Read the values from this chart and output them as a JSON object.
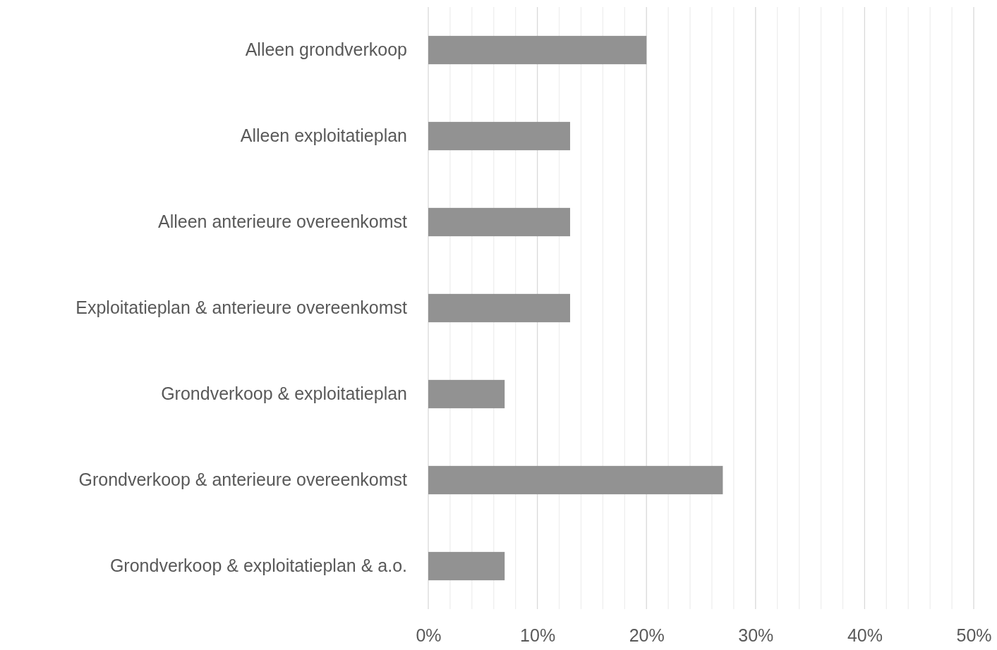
{
  "chart_data": {
    "type": "bar",
    "orientation": "horizontal",
    "categories": [
      "Alleen grondverkoop",
      "Alleen exploitatieplan",
      "Alleen anterieure overeenkomst",
      "Exploitatieplan & anterieure overeenkomst",
      "Grondverkoop & exploitatieplan",
      "Grondverkoop & anterieure overeenkomst",
      "Grondverkoop & exploitatieplan & a.o."
    ],
    "values": [
      20,
      13,
      13,
      13,
      7,
      27,
      7
    ],
    "color": "#929292",
    "xlim": [
      0,
      50
    ],
    "xticks": [
      {
        "value": 0,
        "label": "0%"
      },
      {
        "value": 2,
        "label": null
      },
      {
        "value": 4,
        "label": null
      },
      {
        "value": 6,
        "label": null
      },
      {
        "value": 8,
        "label": null
      },
      {
        "value": 10,
        "label": "10%"
      },
      {
        "value": 12,
        "label": null
      },
      {
        "value": 14,
        "label": null
      },
      {
        "value": 16,
        "label": null
      },
      {
        "value": 18,
        "label": null
      },
      {
        "value": 20,
        "label": "20%"
      },
      {
        "value": 22,
        "label": null
      },
      {
        "value": 24,
        "label": null
      },
      {
        "value": 26,
        "label": null
      },
      {
        "value": 28,
        "label": null
      },
      {
        "value": 30,
        "label": "30%"
      },
      {
        "value": 32,
        "label": null
      },
      {
        "value": 34,
        "label": null
      },
      {
        "value": 36,
        "label": null
      },
      {
        "value": 38,
        "label": null
      },
      {
        "value": 40,
        "label": "40%"
      },
      {
        "value": 42,
        "label": null
      },
      {
        "value": 44,
        "label": null
      },
      {
        "value": 46,
        "label": null
      },
      {
        "value": 48,
        "label": null
      },
      {
        "value": 50,
        "label": "50%"
      }
    ],
    "grid": "x"
  }
}
